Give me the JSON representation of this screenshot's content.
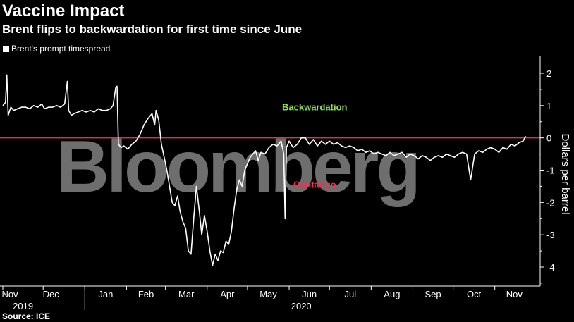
{
  "chart_data": {
    "type": "line",
    "title": "Vaccine Impact",
    "subtitle": "Brent flips to backwardation for first time since June",
    "legend": "Brent's prompt timespread",
    "ylabel": "Dollars per barrel",
    "source": "Source: ICE",
    "watermark": "Bloomberg",
    "ylim": [
      -4.5,
      2.2
    ],
    "yticks": [
      2,
      1,
      0,
      -1,
      -2,
      -3,
      -4
    ],
    "ytick_labels": [
      "2",
      "1",
      "0",
      "-1",
      "-2",
      "-3",
      "-4"
    ],
    "zero_line": {
      "value": 0,
      "color": "#e8303a"
    },
    "annotations": [
      {
        "name": "backwardation",
        "text": "Backwardation",
        "x": "2020-06-20",
        "y": 0.85,
        "color": "#8ee05a"
      },
      {
        "name": "contango",
        "text": "Contango",
        "x": "2020-06-20",
        "y": -1.55,
        "color": "#ff2a50"
      }
    ],
    "xlim": [
      "2019-11-01",
      "2020-11-30"
    ],
    "xticks": [
      {
        "label": "Nov",
        "date": "2019-11-01"
      },
      {
        "label": "Dec",
        "date": "2019-12-01"
      },
      {
        "label": "Jan",
        "date": "2020-01-01"
      },
      {
        "label": "Feb",
        "date": "2020-02-01"
      },
      {
        "label": "Mar",
        "date": "2020-03-01"
      },
      {
        "label": "Apr",
        "date": "2020-04-01"
      },
      {
        "label": "May",
        "date": "2020-05-01"
      },
      {
        "label": "Jun",
        "date": "2020-06-01"
      },
      {
        "label": "Jul",
        "date": "2020-07-01"
      },
      {
        "label": "Aug",
        "date": "2020-08-01"
      },
      {
        "label": "Sep",
        "date": "2020-09-01"
      },
      {
        "label": "Oct",
        "date": "2020-10-01"
      },
      {
        "label": "Nov",
        "date": "2020-11-01"
      }
    ],
    "year_labels": [
      {
        "label": "2019",
        "date": "2019-11-16"
      },
      {
        "label": "2020",
        "date": "2020-06-10"
      }
    ],
    "series": [
      {
        "name": "Brent's prompt timespread",
        "color": "#ffffff",
        "x": [
          "2019-11-01",
          "2019-11-03",
          "2019-11-04",
          "2019-11-05",
          "2019-11-07",
          "2019-11-09",
          "2019-11-12",
          "2019-11-15",
          "2019-11-18",
          "2019-11-21",
          "2019-11-24",
          "2019-11-27",
          "2019-11-30",
          "2019-12-02",
          "2019-12-05",
          "2019-12-08",
          "2019-12-11",
          "2019-12-14",
          "2019-12-17",
          "2019-12-19",
          "2019-12-20",
          "2019-12-22",
          "2019-12-24",
          "2019-12-27",
          "2019-12-30",
          "2020-01-02",
          "2020-01-05",
          "2020-01-08",
          "2020-01-11",
          "2020-01-14",
          "2020-01-17",
          "2020-01-20",
          "2020-01-22",
          "2020-01-24",
          "2020-01-25",
          "2020-01-26",
          "2020-01-28",
          "2020-01-30",
          "2020-02-02",
          "2020-02-05",
          "2020-02-08",
          "2020-02-11",
          "2020-02-14",
          "2020-02-17",
          "2020-02-20",
          "2020-02-22",
          "2020-02-23",
          "2020-02-25",
          "2020-02-27",
          "2020-02-29",
          "2020-03-02",
          "2020-03-04",
          "2020-03-06",
          "2020-03-08",
          "2020-03-10",
          "2020-03-12",
          "2020-03-14",
          "2020-03-16",
          "2020-03-18",
          "2020-03-20",
          "2020-03-22",
          "2020-03-24",
          "2020-03-26",
          "2020-03-28",
          "2020-03-30",
          "2020-04-01",
          "2020-04-03",
          "2020-04-05",
          "2020-04-07",
          "2020-04-09",
          "2020-04-11",
          "2020-04-13",
          "2020-04-15",
          "2020-04-17",
          "2020-04-19",
          "2020-04-21",
          "2020-04-23",
          "2020-04-25",
          "2020-04-27",
          "2020-04-29",
          "2020-05-01",
          "2020-05-03",
          "2020-05-05",
          "2020-05-07",
          "2020-05-09",
          "2020-05-11",
          "2020-05-14",
          "2020-05-17",
          "2020-05-20",
          "2020-05-23",
          "2020-05-26",
          "2020-05-28",
          "2020-05-29",
          "2020-05-30",
          "2020-06-01",
          "2020-06-04",
          "2020-06-07",
          "2020-06-10",
          "2020-06-13",
          "2020-06-16",
          "2020-06-19",
          "2020-06-22",
          "2020-06-25",
          "2020-06-28",
          "2020-07-01",
          "2020-07-04",
          "2020-07-07",
          "2020-07-10",
          "2020-07-13",
          "2020-07-16",
          "2020-07-19",
          "2020-07-22",
          "2020-07-25",
          "2020-07-28",
          "2020-07-31",
          "2020-08-03",
          "2020-08-06",
          "2020-08-09",
          "2020-08-12",
          "2020-08-15",
          "2020-08-18",
          "2020-08-21",
          "2020-08-24",
          "2020-08-27",
          "2020-08-30",
          "2020-09-02",
          "2020-09-05",
          "2020-09-08",
          "2020-09-11",
          "2020-09-14",
          "2020-09-17",
          "2020-09-20",
          "2020-09-23",
          "2020-09-26",
          "2020-09-29",
          "2020-10-02",
          "2020-10-05",
          "2020-10-08",
          "2020-10-11",
          "2020-10-14",
          "2020-10-17",
          "2020-10-20",
          "2020-10-23",
          "2020-10-26",
          "2020-10-29",
          "2020-11-01",
          "2020-11-04",
          "2020-11-07",
          "2020-11-10",
          "2020-11-13",
          "2020-11-16",
          "2020-11-19",
          "2020-11-22",
          "2020-11-24"
        ],
        "values": [
          1.0,
          1.1,
          1.95,
          0.7,
          0.95,
          0.85,
          0.9,
          0.95,
          0.95,
          0.9,
          1.0,
          0.95,
          1.05,
          0.9,
          0.95,
          0.95,
          1.0,
          0.95,
          1.05,
          1.75,
          0.85,
          0.7,
          0.75,
          0.8,
          0.85,
          0.8,
          0.85,
          0.8,
          0.9,
          0.85,
          0.85,
          0.9,
          1.0,
          1.55,
          1.6,
          -0.2,
          -0.3,
          -0.25,
          -0.35,
          -0.2,
          -0.1,
          0.1,
          0.4,
          0.6,
          0.75,
          0.4,
          0.85,
          0.55,
          -0.2,
          -0.6,
          -1.0,
          -1.5,
          -2.0,
          -2.1,
          -1.8,
          -2.3,
          -2.6,
          -2.8,
          -3.5,
          -3.6,
          -2.5,
          -1.5,
          -2.2,
          -3.0,
          -2.4,
          -2.9,
          -3.5,
          -3.95,
          -3.6,
          -3.8,
          -3.5,
          -3.55,
          -3.2,
          -3.3,
          -2.9,
          -2.2,
          -1.6,
          -1.3,
          -1.5,
          -1.0,
          -0.8,
          -0.6,
          -0.5,
          -0.4,
          -0.7,
          -0.45,
          -0.5,
          -0.3,
          -0.2,
          -0.25,
          -0.1,
          -0.5,
          -2.5,
          -0.3,
          -0.1,
          -0.3,
          -0.2,
          0.0,
          0.0,
          -0.2,
          -0.05,
          -0.25,
          -0.1,
          -0.2,
          -0.1,
          -0.2,
          -0.15,
          -0.25,
          -0.3,
          -0.25,
          -0.3,
          -0.4,
          -0.35,
          -0.45,
          -0.4,
          -0.5,
          -0.45,
          -0.5,
          -0.55,
          -0.45,
          -0.55,
          -0.5,
          -0.45,
          -0.6,
          -0.5,
          -0.55,
          -0.65,
          -0.55,
          -0.6,
          -0.7,
          -0.6,
          -0.55,
          -0.6,
          -0.5,
          -0.55,
          -0.6,
          -0.5,
          -0.45,
          -0.5,
          -1.3,
          -0.5,
          -0.4,
          -0.45,
          -0.35,
          -0.3,
          -0.35,
          -0.45,
          -0.3,
          -0.35,
          -0.2,
          -0.25,
          -0.15,
          -0.1,
          0.05
        ]
      }
    ],
    "grid": false
  }
}
